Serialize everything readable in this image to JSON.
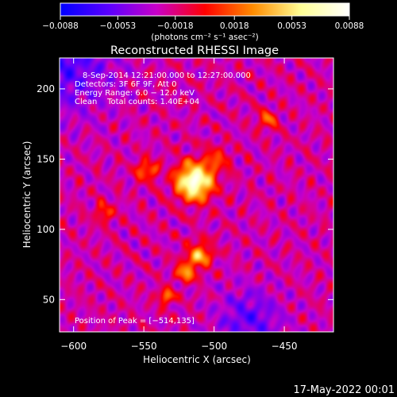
{
  "chart_data": {
    "type": "heatmap",
    "title": "Reconstructed RHESSI Image",
    "xlabel": "Heliocentric X (arcsec)",
    "ylabel": "Heliocentric Y (arcsec)",
    "xlim": [
      -610,
      -415
    ],
    "ylim": [
      27,
      222
    ],
    "x_ticks": [
      -600,
      -550,
      -500,
      -450
    ],
    "x_tick_labels": [
      "−600",
      "−550",
      "−500",
      "−450"
    ],
    "y_ticks": [
      50,
      100,
      150,
      200
    ],
    "y_tick_labels": [
      "50",
      "100",
      "150",
      "200"
    ],
    "colorbar": {
      "range": [
        -0.0088,
        0.0088
      ],
      "ticks": [
        -0.0088,
        -0.0053,
        -0.0018,
        0.0018,
        0.0053,
        0.0088
      ],
      "tick_labels": [
        "−0.0088",
        "−0.0053",
        "−0.0018",
        "0.0018",
        "0.0053",
        "0.0088"
      ],
      "unit_label": "(photons cm⁻² s⁻¹ asec⁻²)",
      "colormap": [
        "#0000ff",
        "#5a00ff",
        "#c800c8",
        "#ff0000",
        "#ff8c00",
        "#ffff96",
        "#ffffff"
      ]
    },
    "annotations": [
      "8‑Sep‑2014 12:21:00.000 to 12:27:00.000",
      "Detectors: 3F 6F 9F, Att 0",
      "Energy Range: 6.0 − 12.0 keV",
      "Clean    Total counts: 1.40E+04"
    ],
    "peak_label": "Position of Peak = [−514,135]",
    "peak": [
      -514,
      135
    ],
    "sources": [
      {
        "x": -514,
        "y": 134,
        "sigma": 9,
        "amp": 1.0
      },
      {
        "x": -548,
        "y": 142,
        "sigma": 5,
        "amp": 0.45
      },
      {
        "x": -498,
        "y": 150,
        "sigma": 6,
        "amp": 0.3
      },
      {
        "x": -510,
        "y": 82,
        "sigma": 6,
        "amp": 0.55
      },
      {
        "x": -520,
        "y": 70,
        "sigma": 5,
        "amp": 0.5
      },
      {
        "x": -534,
        "y": 52,
        "sigma": 4,
        "amp": 0.45
      },
      {
        "x": -462,
        "y": 178,
        "sigma": 5,
        "amp": 0.35
      },
      {
        "x": -578,
        "y": 112,
        "sigma": 5,
        "amp": 0.3
      }
    ],
    "grid": false
  },
  "timestamp": "17‑May‑2022 00:01"
}
